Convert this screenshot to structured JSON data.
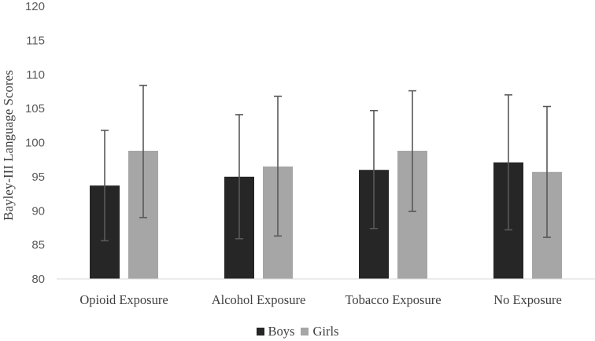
{
  "chart_data": {
    "type": "bar",
    "title": "",
    "xlabel": "",
    "ylabel": "Bayley-III Language Scores",
    "ylim": [
      80,
      120
    ],
    "yticks": [
      80,
      85,
      90,
      95,
      100,
      105,
      110,
      115,
      120
    ],
    "categories": [
      "Opioid Exposure",
      "Alcohol Exposure",
      "Tobacco Exposure",
      "No Exposure"
    ],
    "series": [
      {
        "name": "Boys",
        "color": "#262626",
        "values": [
          93.7,
          95.0,
          96.0,
          97.1
        ],
        "err_low": [
          85.6,
          85.9,
          87.4,
          87.2
        ],
        "err_high": [
          101.8,
          104.1,
          104.7,
          107.0
        ]
      },
      {
        "name": "Girls",
        "color": "#a6a6a6",
        "values": [
          98.8,
          96.5,
          98.8,
          95.7
        ],
        "err_low": [
          89.0,
          86.3,
          89.9,
          86.1
        ],
        "err_high": [
          108.4,
          106.8,
          107.6,
          105.3
        ]
      }
    ],
    "error_bars": true,
    "grid": false,
    "legend": "bottom"
  }
}
